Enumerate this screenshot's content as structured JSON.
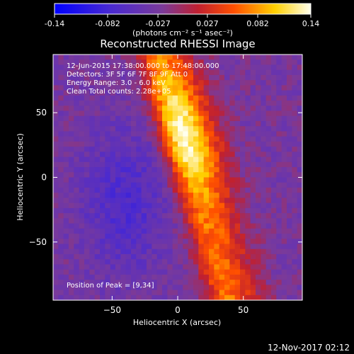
{
  "chart_data": {
    "type": "heatmap",
    "title": "Reconstructed RHESSI Image",
    "xlabel": "Heliocentric X (arcsec)",
    "ylabel": "Heliocentric Y (arcsec)",
    "xlim": [
      -95,
      95
    ],
    "ylim": [
      -95,
      95
    ],
    "x_ticks": [
      -50,
      0,
      50
    ],
    "y_ticks": [
      50,
      0,
      -50
    ],
    "grid": false,
    "colorbar": {
      "min": -0.14,
      "max": 0.14,
      "tick_values": [
        -0.14,
        -0.082,
        -0.027,
        0.027,
        0.082,
        0.14
      ],
      "tick_labels": [
        "-0.14",
        "-0.082",
        "-0.027",
        "0.027",
        "0.082",
        "0.14"
      ],
      "unit_label": "(photons cm⁻² s⁻¹ asec⁻²)",
      "colors": [
        "#0000ff",
        "#4a2ad0",
        "#7a3a9a",
        "#c02030",
        "#ff5000",
        "#ffd000",
        "#ffffee"
      ]
    },
    "annotations": {
      "time_range": "12-Jun-2015 17:38:00.000 to 17:48:00.000",
      "detectors": "Detectors: 3F 5F 6F 7F 8F 9F  Att 0",
      "energy": "Energy Range: 3.0 - 6.0 keV",
      "algorithm": "Clean    Total counts: 2.28e+05",
      "peak": "Position of Peak = [9,34]"
    },
    "peak_position": [
      9,
      34
    ]
  },
  "footer": {
    "timestamp": "12-Nov-2017 02:12"
  }
}
